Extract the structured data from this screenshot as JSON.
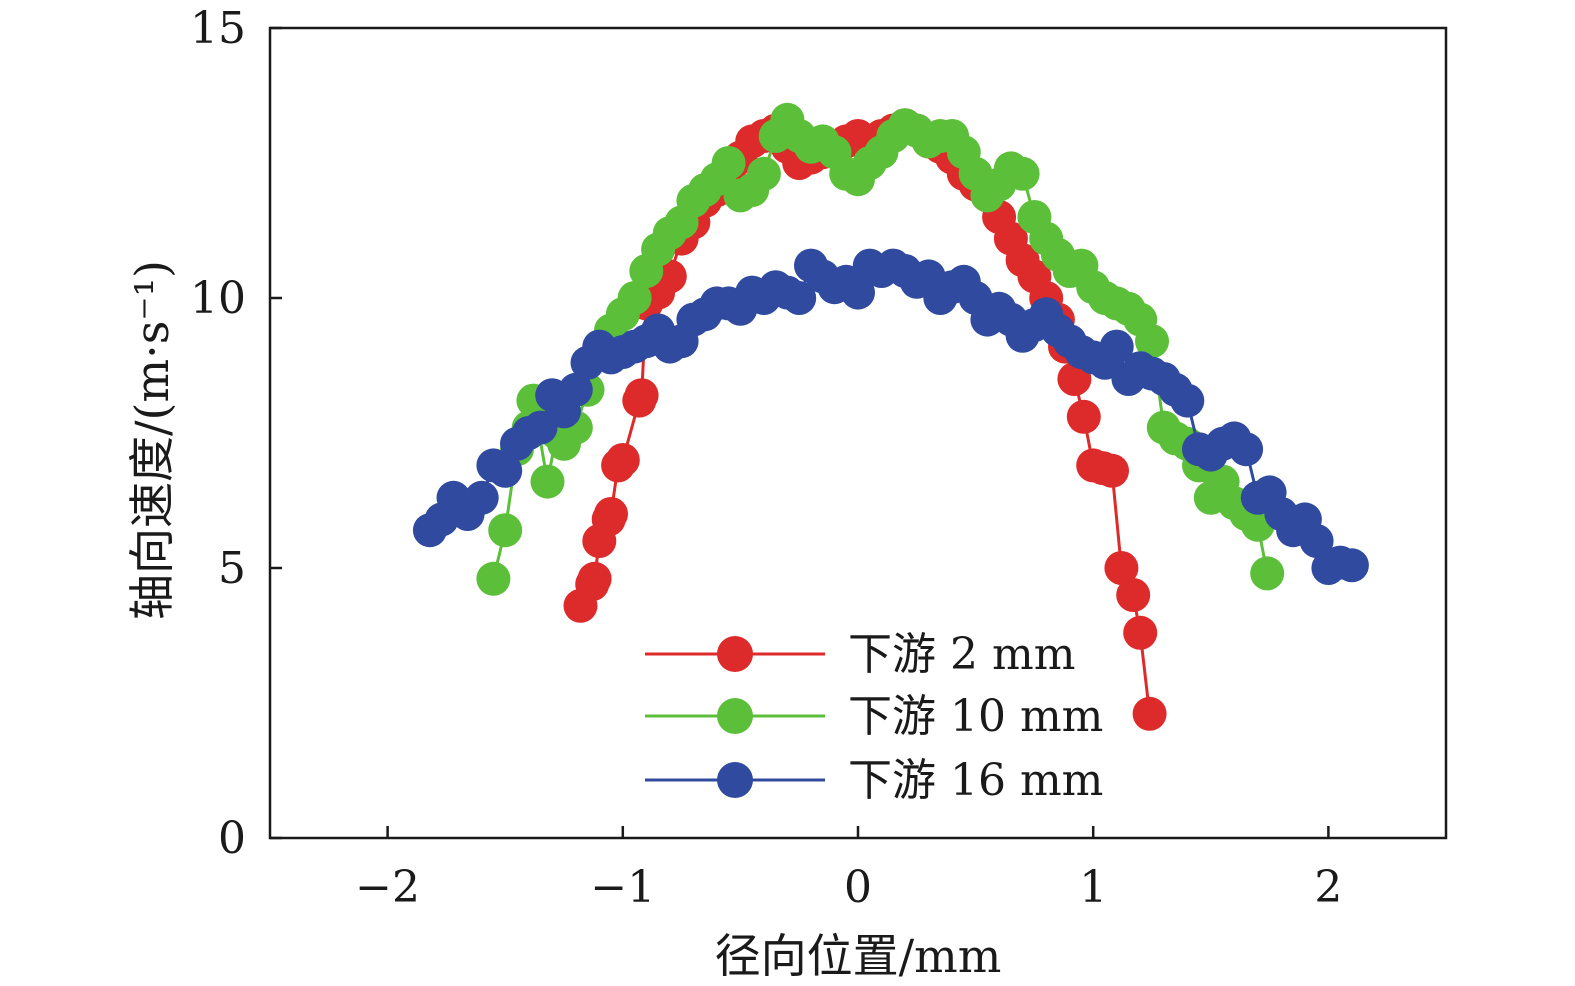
{
  "chart_data": {
    "type": "line",
    "title": "",
    "xlabel": "径向位置/mm",
    "ylabel": "轴向速度/(m·s⁻¹)",
    "xlim": [
      -2.5,
      2.5
    ],
    "ylim": [
      0,
      15
    ],
    "xticks": [
      -2,
      -1,
      0,
      1,
      2
    ],
    "xtick_labels": [
      "−2",
      "−1",
      "0",
      "1",
      "2"
    ],
    "yticks": [
      0,
      5,
      10,
      15
    ],
    "ytick_labels": [
      "0",
      "5",
      "10",
      "15"
    ],
    "grid": false,
    "legend_position": "bottom-center",
    "series": [
      {
        "name": "下游 2 mm",
        "color": "#dd2a2a",
        "x": [
          -1.18,
          -1.13,
          -1.12,
          -1.1,
          -1.06,
          -1.05,
          -1.02,
          -1.0,
          -0.93,
          -0.92,
          -0.9,
          -0.85,
          -0.8,
          -0.75,
          -0.7,
          -0.65,
          -0.6,
          -0.55,
          -0.5,
          -0.45,
          -0.4,
          -0.35,
          -0.3,
          -0.25,
          -0.2,
          -0.15,
          -0.1,
          -0.05,
          0.0,
          0.05,
          0.1,
          0.15,
          0.2,
          0.25,
          0.3,
          0.35,
          0.4,
          0.45,
          0.5,
          0.55,
          0.6,
          0.65,
          0.7,
          0.75,
          0.8,
          0.85,
          0.88,
          0.92,
          0.96,
          1.0,
          1.04,
          1.08,
          1.12,
          1.17,
          1.2,
          1.24
        ],
        "y": [
          4.3,
          4.7,
          4.8,
          5.5,
          5.9,
          6.0,
          6.9,
          7.0,
          8.1,
          8.2,
          9.9,
          10.1,
          10.4,
          11.1,
          11.4,
          11.8,
          12.0,
          12.3,
          12.6,
          12.9,
          13.0,
          13.1,
          12.8,
          12.5,
          12.6,
          12.7,
          12.8,
          12.9,
          13.0,
          12.8,
          13.0,
          13.1,
          13.2,
          13.1,
          12.9,
          12.8,
          12.6,
          12.3,
          12.1,
          11.9,
          11.5,
          11.1,
          10.7,
          10.4,
          10.0,
          9.6,
          9.1,
          8.5,
          7.8,
          6.9,
          6.85,
          6.8,
          5.0,
          4.5,
          3.8,
          2.3
        ]
      },
      {
        "name": "下游 10 mm",
        "color": "#5cbf3a",
        "x": [
          -1.55,
          -1.5,
          -1.45,
          -1.4,
          -1.38,
          -1.32,
          -1.28,
          -1.25,
          -1.2,
          -1.15,
          -1.1,
          -1.05,
          -1.0,
          -0.95,
          -0.9,
          -0.85,
          -0.8,
          -0.75,
          -0.7,
          -0.65,
          -0.6,
          -0.55,
          -0.5,
          -0.45,
          -0.4,
          -0.35,
          -0.3,
          -0.25,
          -0.2,
          -0.15,
          -0.1,
          -0.05,
          0.0,
          0.05,
          0.1,
          0.15,
          0.2,
          0.25,
          0.3,
          0.35,
          0.4,
          0.45,
          0.5,
          0.55,
          0.6,
          0.65,
          0.7,
          0.75,
          0.8,
          0.85,
          0.9,
          0.95,
          1.0,
          1.05,
          1.1,
          1.15,
          1.2,
          1.25,
          1.3,
          1.35,
          1.4,
          1.45,
          1.5,
          1.55,
          1.6,
          1.65,
          1.7,
          1.74
        ],
        "y": [
          4.8,
          5.7,
          7.2,
          7.6,
          8.1,
          6.6,
          7.5,
          7.3,
          7.6,
          8.3,
          9.0,
          9.4,
          9.7,
          10.0,
          10.5,
          10.9,
          11.2,
          11.4,
          11.8,
          12.0,
          12.2,
          12.5,
          11.9,
          12.0,
          12.3,
          13.0,
          13.3,
          13.0,
          12.8,
          12.9,
          12.7,
          12.3,
          12.2,
          12.5,
          12.7,
          13.0,
          13.2,
          13.1,
          12.9,
          13.0,
          13.0,
          12.7,
          12.3,
          11.9,
          12.1,
          12.4,
          12.3,
          11.5,
          11.1,
          10.8,
          10.5,
          10.6,
          10.2,
          10.0,
          9.9,
          9.8,
          9.6,
          9.2,
          7.6,
          7.4,
          7.3,
          6.9,
          6.3,
          6.6,
          6.2,
          6.0,
          5.8,
          4.9
        ]
      },
      {
        "name": "下游 16 mm",
        "color": "#2f4a9e",
        "x": [
          -1.82,
          -1.77,
          -1.72,
          -1.66,
          -1.6,
          -1.55,
          -1.5,
          -1.45,
          -1.4,
          -1.35,
          -1.3,
          -1.25,
          -1.2,
          -1.15,
          -1.1,
          -1.05,
          -1.0,
          -0.95,
          -0.9,
          -0.85,
          -0.8,
          -0.75,
          -0.7,
          -0.65,
          -0.6,
          -0.55,
          -0.5,
          -0.45,
          -0.4,
          -0.35,
          -0.3,
          -0.25,
          -0.2,
          -0.15,
          -0.1,
          -0.05,
          0.0,
          0.05,
          0.1,
          0.15,
          0.2,
          0.25,
          0.3,
          0.35,
          0.4,
          0.45,
          0.5,
          0.55,
          0.6,
          0.65,
          0.7,
          0.75,
          0.8,
          0.85,
          0.9,
          0.95,
          1.0,
          1.05,
          1.1,
          1.15,
          1.2,
          1.25,
          1.3,
          1.35,
          1.4,
          1.45,
          1.5,
          1.55,
          1.6,
          1.65,
          1.7,
          1.75,
          1.8,
          1.85,
          1.9,
          1.95,
          2.0,
          2.05,
          2.1
        ],
        "y": [
          5.7,
          5.9,
          6.3,
          6.0,
          6.3,
          6.9,
          6.8,
          7.3,
          7.5,
          7.6,
          8.2,
          7.9,
          8.3,
          8.8,
          9.1,
          8.9,
          9.0,
          9.1,
          9.2,
          9.4,
          9.1,
          9.2,
          9.6,
          9.7,
          9.9,
          9.9,
          9.8,
          10.1,
          10.0,
          10.2,
          10.1,
          10.0,
          10.6,
          10.4,
          10.2,
          10.3,
          10.1,
          10.6,
          10.5,
          10.6,
          10.5,
          10.3,
          10.4,
          10.0,
          10.2,
          10.3,
          10.0,
          9.6,
          9.8,
          9.6,
          9.3,
          9.5,
          9.7,
          9.4,
          9.2,
          9.0,
          8.9,
          8.8,
          9.1,
          8.5,
          8.7,
          8.6,
          8.5,
          8.3,
          8.1,
          7.2,
          7.1,
          7.3,
          7.4,
          7.2,
          6.3,
          6.4,
          6.0,
          5.7,
          5.9,
          5.5,
          5.0,
          5.1,
          5.05
        ]
      }
    ]
  }
}
